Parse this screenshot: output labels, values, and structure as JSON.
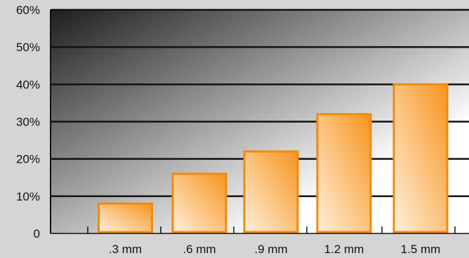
{
  "chart_data": {
    "type": "bar",
    "categories": [
      ".3 mm",
      ".6 mm",
      ".9 mm",
      "1.2 mm",
      "1.5 mm"
    ],
    "values": [
      8,
      16,
      22,
      32,
      40
    ],
    "ylim": [
      0,
      60
    ],
    "y_ticks": [
      {
        "value": 0,
        "label": "0"
      },
      {
        "value": 10,
        "label": "10%"
      },
      {
        "value": 20,
        "label": "20%"
      },
      {
        "value": 30,
        "label": "30%"
      },
      {
        "value": 40,
        "label": "40%"
      },
      {
        "value": 50,
        "label": "50%"
      },
      {
        "value": 60,
        "label": "60%"
      }
    ],
    "grid": true,
    "title": "",
    "xlabel": "",
    "ylabel": "",
    "colors": {
      "bar_fill_light": "#fff0dc",
      "bar_fill_dark": "#f7941d",
      "bar_stroke": "#f08a10",
      "plot_bg_dark": "#1e1e1e",
      "plot_bg_light": "#ffffff",
      "page_bg": "#d5d5d5",
      "grid_line": "#111111"
    }
  }
}
